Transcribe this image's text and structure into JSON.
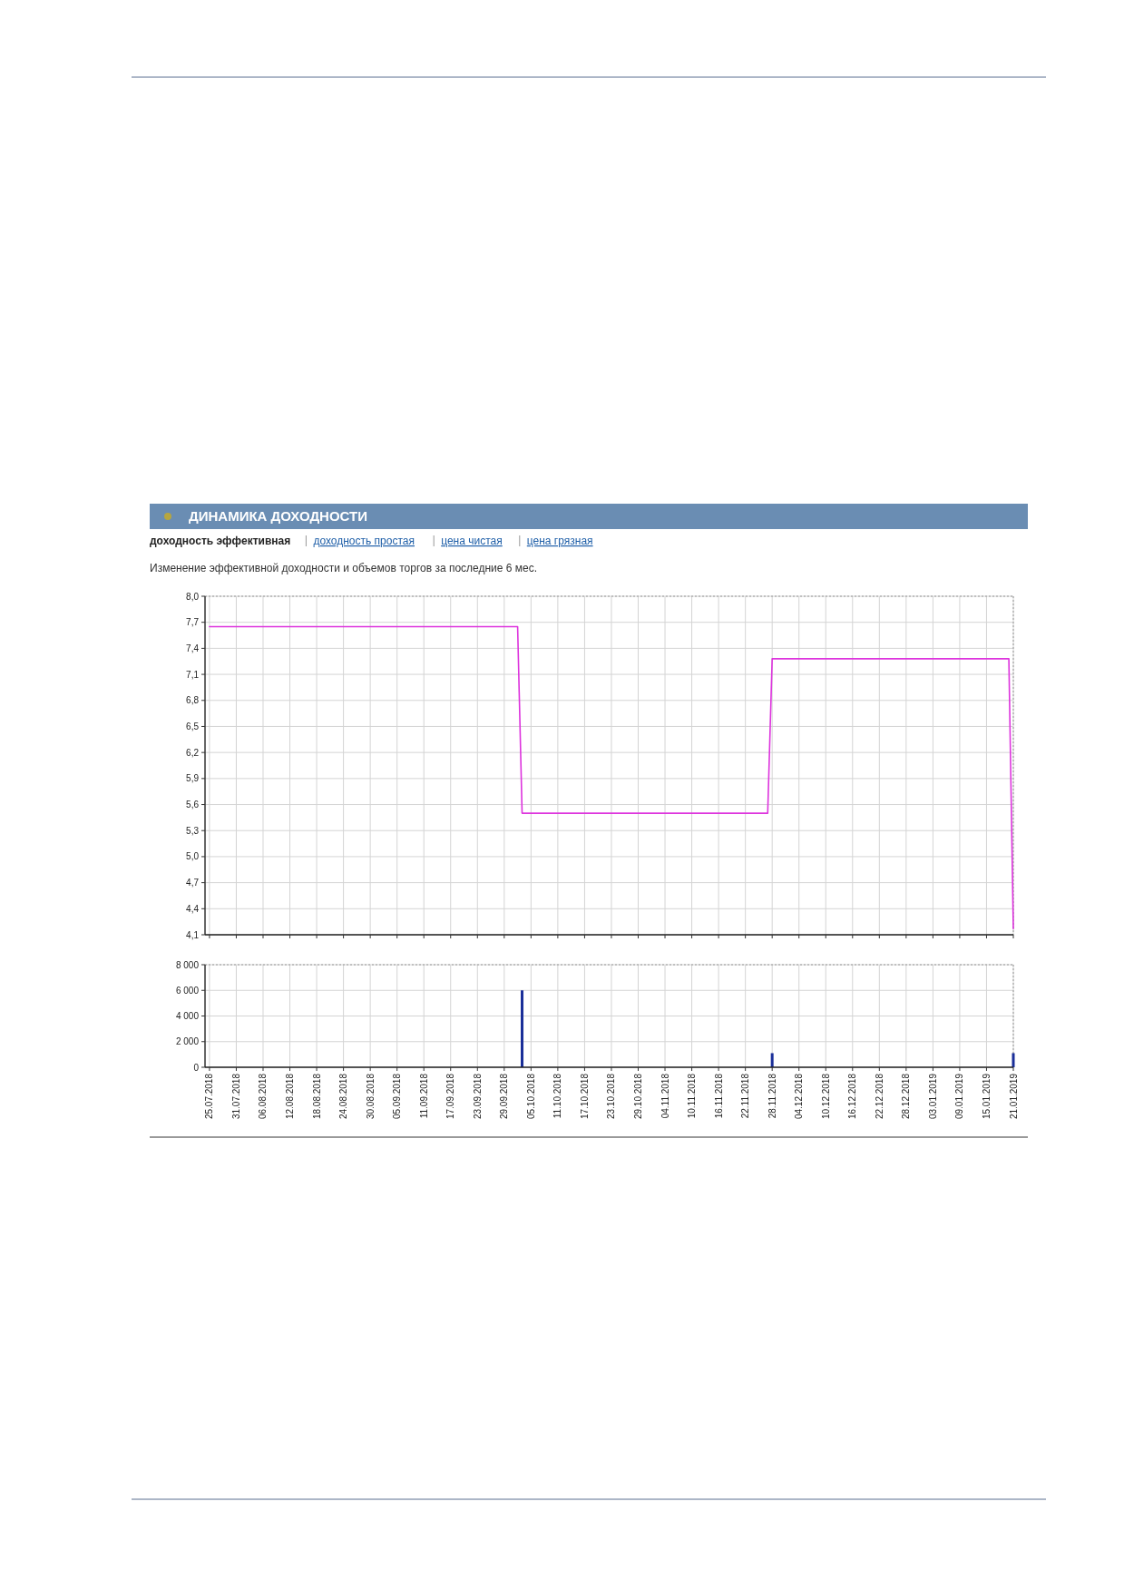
{
  "chart_data": [
    {
      "type": "line",
      "title": "ДИНАМИКА ДОХОДНОСТИ",
      "subtitle": "Изменение эффективной доходности и объемов торгов за последние 6 мес.",
      "annotations": [
        "доходность эффективная",
        "доходность простая",
        "цена чистая",
        "цена грязная"
      ],
      "x": [
        "2018-07-25",
        "2018-10-02",
        "2018-10-03",
        "2018-11-27",
        "2018-11-28",
        "2019-01-20",
        "2019-01-21"
      ],
      "series": [
        {
          "color": "#dd33dd",
          "values": [
            7.65,
            7.65,
            5.5,
            5.5,
            7.28,
            7.28,
            4.17
          ]
        }
      ],
      "xlim": [
        "2018-07-24",
        "2019-01-21"
      ],
      "ylim": [
        4.1,
        8.0
      ],
      "yticks": [
        {
          "value": 4.1,
          "label": "4,1"
        },
        {
          "value": 4.4,
          "label": "4,4"
        },
        {
          "value": 4.7,
          "label": "4,7"
        },
        {
          "value": 5.0,
          "label": "5,0"
        },
        {
          "value": 5.3,
          "label": "5,3"
        },
        {
          "value": 5.6,
          "label": "5,6"
        },
        {
          "value": 5.9,
          "label": "5,9"
        },
        {
          "value": 6.2,
          "label": "6,2"
        },
        {
          "value": 6.5,
          "label": "6,5"
        },
        {
          "value": 6.8,
          "label": "6,8"
        },
        {
          "value": 7.1,
          "label": "7,1"
        },
        {
          "value": 7.4,
          "label": "7,4"
        },
        {
          "value": 7.7,
          "label": "7,7"
        },
        {
          "value": 8.0,
          "label": "8,0"
        }
      ],
      "xticks": [
        {
          "value": "2018-07-25",
          "label": null
        },
        {
          "value": "2018-07-31",
          "label": null
        },
        {
          "value": "2018-08-06",
          "label": null
        },
        {
          "value": "2018-08-12",
          "label": null
        },
        {
          "value": "2018-08-18",
          "label": null
        },
        {
          "value": "2018-08-24",
          "label": null
        },
        {
          "value": "2018-08-30",
          "label": null
        },
        {
          "value": "2018-09-05",
          "label": null
        },
        {
          "value": "2018-09-11",
          "label": null
        },
        {
          "value": "2018-09-17",
          "label": null
        },
        {
          "value": "2018-09-23",
          "label": null
        },
        {
          "value": "2018-09-29",
          "label": null
        },
        {
          "value": "2018-10-05",
          "label": null
        },
        {
          "value": "2018-10-11",
          "label": null
        },
        {
          "value": "2018-10-17",
          "label": null
        },
        {
          "value": "2018-10-23",
          "label": null
        },
        {
          "value": "2018-10-29",
          "label": null
        },
        {
          "value": "2018-11-04",
          "label": null
        },
        {
          "value": "2018-11-10",
          "label": null
        },
        {
          "value": "2018-11-16",
          "label": null
        },
        {
          "value": "2018-11-22",
          "label": null
        },
        {
          "value": "2018-11-28",
          "label": null
        },
        {
          "value": "2018-12-04",
          "label": null
        },
        {
          "value": "2018-12-10",
          "label": null
        },
        {
          "value": "2018-12-16",
          "label": null
        },
        {
          "value": "2018-12-22",
          "label": null
        },
        {
          "value": "2018-12-28",
          "label": null
        },
        {
          "value": "2019-01-03",
          "label": null
        },
        {
          "value": "2019-01-09",
          "label": null
        },
        {
          "value": "2019-01-15",
          "label": null
        },
        {
          "value": "2019-01-21",
          "label": null
        }
      ],
      "grid": true,
      "tick_labels": "y"
    },
    {
      "type": "bar",
      "x": [
        "2018-10-03",
        "2018-11-28",
        "2019-01-21"
      ],
      "values": [
        6000,
        1100,
        1100
      ],
      "color": "#1a2f99",
      "xlim": [
        "2018-07-24",
        "2019-01-21"
      ],
      "ylim": [
        0,
        8000
      ],
      "yticks": [
        {
          "value": 0,
          "label": "0"
        },
        {
          "value": 2000,
          "label": "2 000"
        },
        {
          "value": 4000,
          "label": "4 000"
        },
        {
          "value": 6000,
          "label": "6 000"
        },
        {
          "value": 8000,
          "label": "8 000"
        }
      ],
      "xticks": [
        {
          "value": "2018-07-25",
          "label": "25.07.2018"
        },
        {
          "value": "2018-07-31",
          "label": "31.07.2018"
        },
        {
          "value": "2018-08-06",
          "label": "06.08.2018"
        },
        {
          "value": "2018-08-12",
          "label": "12.08.2018"
        },
        {
          "value": "2018-08-18",
          "label": "18.08.2018"
        },
        {
          "value": "2018-08-24",
          "label": "24.08.2018"
        },
        {
          "value": "2018-08-30",
          "label": "30.08.2018"
        },
        {
          "value": "2018-09-05",
          "label": "05.09.2018"
        },
        {
          "value": "2018-09-11",
          "label": "11.09.2018"
        },
        {
          "value": "2018-09-17",
          "label": "17.09.2018"
        },
        {
          "value": "2018-09-23",
          "label": "23.09.2018"
        },
        {
          "value": "2018-09-29",
          "label": "29.09.2018"
        },
        {
          "value": "2018-10-05",
          "label": "05.10.2018"
        },
        {
          "value": "2018-10-11",
          "label": "11.10.2018"
        },
        {
          "value": "2018-10-17",
          "label": "17.10.2018"
        },
        {
          "value": "2018-10-23",
          "label": "23.10.2018"
        },
        {
          "value": "2018-10-29",
          "label": "29.10.2018"
        },
        {
          "value": "2018-11-04",
          "label": "04.11.2018"
        },
        {
          "value": "2018-11-10",
          "label": "10.11.2018"
        },
        {
          "value": "2018-11-16",
          "label": "16.11.2018"
        },
        {
          "value": "2018-11-22",
          "label": "22.11.2018"
        },
        {
          "value": "2018-11-28",
          "label": "28.11.2018"
        },
        {
          "value": "2018-12-04",
          "label": "04.12.2018"
        },
        {
          "value": "2018-12-10",
          "label": "10.12.2018"
        },
        {
          "value": "2018-12-16",
          "label": "16.12.2018"
        },
        {
          "value": "2018-12-22",
          "label": "22.12.2018"
        },
        {
          "value": "2018-12-28",
          "label": "28.12.2018"
        },
        {
          "value": "2019-01-03",
          "label": "03.01.2019"
        },
        {
          "value": "2019-01-09",
          "label": "09.01.2019"
        },
        {
          "value": "2019-01-15",
          "label": "15.01.2019"
        },
        {
          "value": "2019-01-21",
          "label": "21.01.2019"
        }
      ],
      "grid": true
    }
  ]
}
